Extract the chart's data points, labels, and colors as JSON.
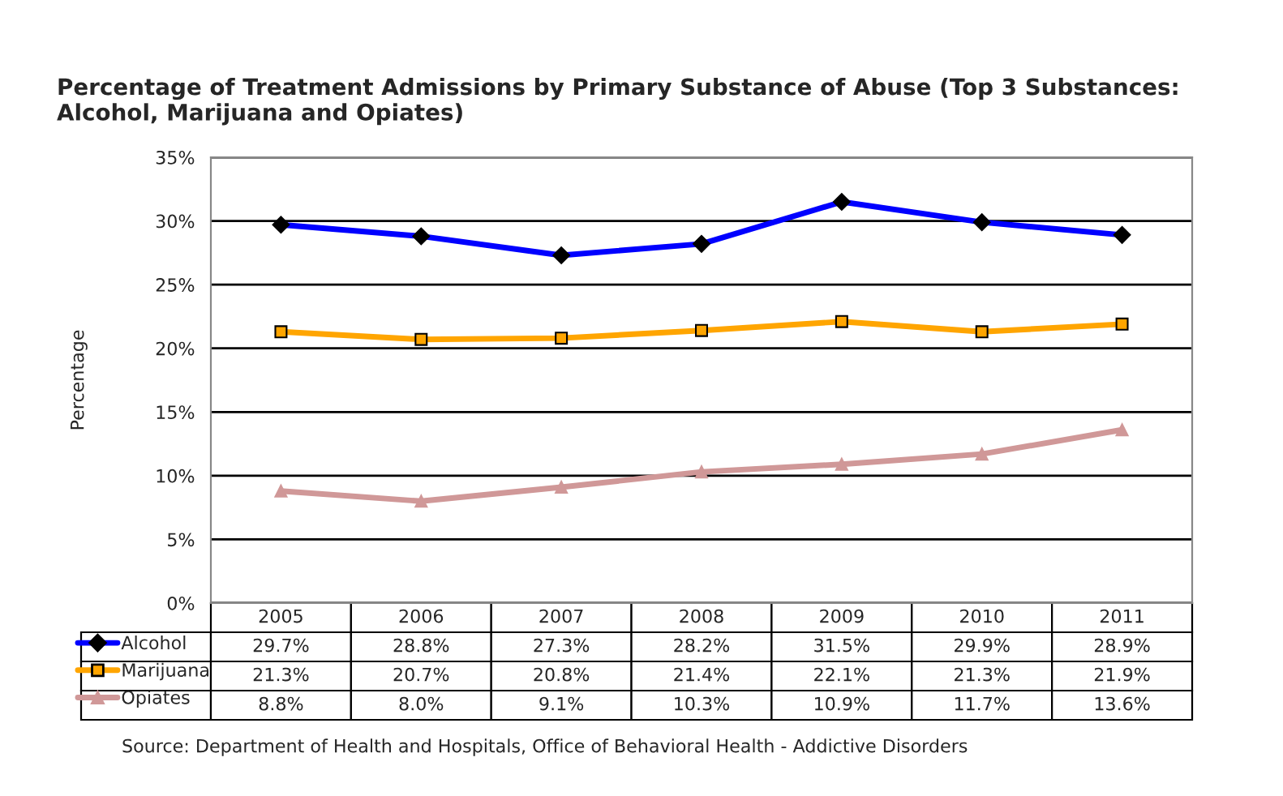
{
  "chart_data": {
    "type": "line",
    "title": "Percentage of Treatment Admissions by Primary Substance of Abuse (Top 3 Substances: Alcohol, Marijuana and Opiates)",
    "ylabel": "Percentage",
    "categories": [
      "2005",
      "2006",
      "2007",
      "2008",
      "2009",
      "2010",
      "2011"
    ],
    "series": [
      {
        "name": "Alcohol",
        "color": "#0000ff",
        "marker": "diamond",
        "values": [
          29.7,
          28.8,
          27.3,
          28.2,
          31.5,
          29.9,
          28.9
        ],
        "value_labels": [
          "29.7%",
          "28.8%",
          "27.3%",
          "28.2%",
          "31.5%",
          "29.9%",
          "28.9%"
        ]
      },
      {
        "name": "Marijuana",
        "color": "#ffa500",
        "marker": "square",
        "values": [
          21.3,
          20.7,
          20.8,
          21.4,
          22.1,
          21.3,
          21.9
        ],
        "value_labels": [
          "21.3%",
          "20.7%",
          "20.8%",
          "21.4%",
          "22.1%",
          "21.3%",
          "21.9%"
        ]
      },
      {
        "name": "Opiates",
        "color": "#d09898",
        "marker": "triangle",
        "values": [
          8.8,
          8.0,
          9.1,
          10.3,
          10.9,
          11.7,
          13.6
        ],
        "value_labels": [
          "8.8%",
          "8.0%",
          "9.1%",
          "10.3%",
          "10.9%",
          "11.7%",
          "13.6%"
        ]
      }
    ],
    "ylim": [
      0,
      35
    ],
    "yticks": [
      {
        "value": 0,
        "label": "0%"
      },
      {
        "value": 5,
        "label": "5%"
      },
      {
        "value": 10,
        "label": "10%"
      },
      {
        "value": 15,
        "label": "15%"
      },
      {
        "value": 20,
        "label": "20%"
      },
      {
        "value": 25,
        "label": "25%"
      },
      {
        "value": 30,
        "label": "30%"
      },
      {
        "value": 35,
        "label": "35%"
      }
    ],
    "grid": "y",
    "legend": "bottom",
    "annotations": [
      "Source: Department of Health and Hospitals, Office of Behavioral Health - Addictive Disorders"
    ]
  }
}
